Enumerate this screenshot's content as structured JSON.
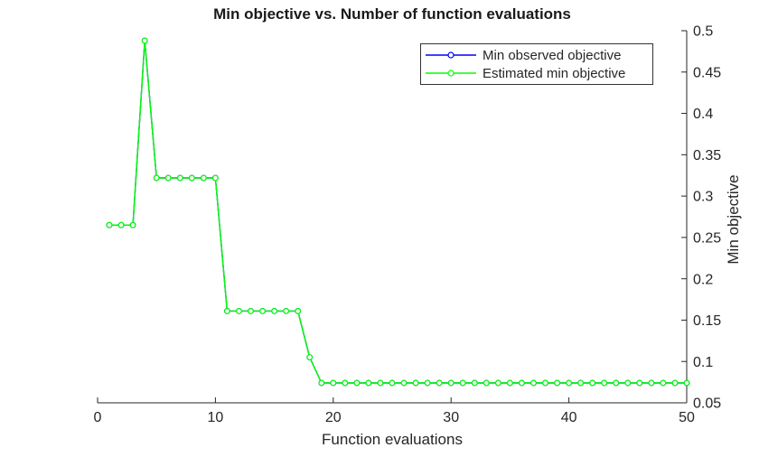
{
  "colors": {
    "background": "#ffffff",
    "axis": "#262626",
    "tick_text": "#262626",
    "title_text": "#1a1a1a",
    "legend_border": "#333333",
    "min_observed": "#0000ff",
    "estimated_min": "#00ff00",
    "marker_fill": "#ffffff"
  },
  "chart_data": {
    "type": "line",
    "title": "Min objective vs. Number of function evaluations",
    "xlabel": "Function evaluations",
    "ylabel": "Min objective",
    "xlim": [
      0,
      50
    ],
    "ylim": [
      0.05,
      0.5
    ],
    "xticks": [
      0,
      10,
      20,
      30,
      40,
      50
    ],
    "xtick_labels": [
      "0",
      "10",
      "20",
      "30",
      "40",
      "50"
    ],
    "yticks": [
      0.05,
      0.1,
      0.15,
      0.2,
      0.25,
      0.3,
      0.35,
      0.4,
      0.45,
      0.5
    ],
    "ytick_labels": [
      "0.05",
      "0.1",
      "0.15",
      "0.2",
      "0.25",
      "0.3",
      "0.35",
      "0.4",
      "0.45",
      "0.5"
    ],
    "y_axis_location": "right",
    "grid": false,
    "legend": {
      "position": "top-right",
      "entries": [
        {
          "label": "Min observed objective",
          "color": "#0000ff"
        },
        {
          "label": "Estimated min objective",
          "color": "#00ff00"
        }
      ]
    },
    "x": [
      1,
      2,
      3,
      4,
      5,
      6,
      7,
      8,
      9,
      10,
      11,
      12,
      13,
      14,
      15,
      16,
      17,
      18,
      19,
      20,
      21,
      22,
      23,
      24,
      25,
      26,
      27,
      28,
      29,
      30,
      31,
      32,
      33,
      34,
      35,
      36,
      37,
      38,
      39,
      40,
      41,
      42,
      43,
      44,
      45,
      46,
      47,
      48,
      49,
      50
    ],
    "series": [
      {
        "name": "Min observed objective",
        "color": "#0000ff",
        "marker": "o",
        "values": [
          0.265,
          0.265,
          0.265,
          0.488,
          0.322,
          0.322,
          0.322,
          0.322,
          0.322,
          0.322,
          0.161,
          0.161,
          0.161,
          0.161,
          0.161,
          0.161,
          0.161,
          0.105,
          0.074,
          0.074,
          0.074,
          0.074,
          0.074,
          0.074,
          0.074,
          0.074,
          0.074,
          0.074,
          0.074,
          0.074,
          0.074,
          0.074,
          0.074,
          0.074,
          0.074,
          0.074,
          0.074,
          0.074,
          0.074,
          0.074,
          0.074,
          0.074,
          0.074,
          0.074,
          0.074,
          0.074,
          0.074,
          0.074,
          0.074,
          0.074
        ]
      },
      {
        "name": "Estimated min objective",
        "color": "#00ff00",
        "marker": "o",
        "values": [
          0.265,
          0.265,
          0.265,
          0.488,
          0.322,
          0.322,
          0.322,
          0.322,
          0.322,
          0.322,
          0.161,
          0.161,
          0.161,
          0.161,
          0.161,
          0.161,
          0.161,
          0.105,
          0.074,
          0.074,
          0.074,
          0.074,
          0.074,
          0.074,
          0.074,
          0.074,
          0.074,
          0.074,
          0.074,
          0.074,
          0.074,
          0.074,
          0.074,
          0.074,
          0.074,
          0.074,
          0.074,
          0.074,
          0.074,
          0.074,
          0.074,
          0.074,
          0.074,
          0.074,
          0.074,
          0.074,
          0.074,
          0.074,
          0.074,
          0.074
        ]
      }
    ]
  }
}
